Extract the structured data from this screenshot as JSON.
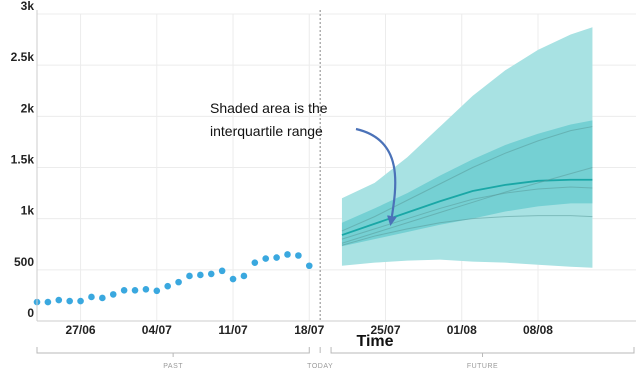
{
  "chart_data": {
    "type": "line",
    "xlabel": "Time",
    "ylabel": "",
    "ylim": [
      0,
      3000
    ],
    "y_ticks": [
      0,
      500,
      1000,
      1500,
      2000,
      2500,
      3000
    ],
    "y_tick_labels": [
      "0",
      "500",
      "1k",
      "1.5k",
      "2k",
      "2.5k",
      "3k"
    ],
    "x_range": [
      -26,
      29
    ],
    "x_ticks": [
      {
        "day": -22,
        "label": "27/06"
      },
      {
        "day": -15,
        "label": "04/07"
      },
      {
        "day": -8,
        "label": "11/07"
      },
      {
        "day": -1,
        "label": "18/07"
      },
      {
        "day": 6,
        "label": "25/07"
      },
      {
        "day": 13,
        "label": "01/08"
      },
      {
        "day": 20,
        "label": "08/08"
      }
    ],
    "today_day": 0,
    "periods": [
      {
        "label": "PAST",
        "from": -26,
        "to": -1
      },
      {
        "label": "TODAY",
        "from": 0,
        "to": 0
      },
      {
        "label": "FUTURE",
        "from": 1,
        "to": 29
      }
    ],
    "series": [
      {
        "type": "scatter",
        "x": [
          -26,
          -25,
          -24,
          -23,
          -22,
          -21,
          -20,
          -19,
          -18,
          -17,
          -16,
          -15,
          -14,
          -13,
          -12,
          -11,
          -10,
          -9,
          -8,
          -7,
          -6,
          -5,
          -4,
          -3,
          -2,
          -1
        ],
        "values": [
          185,
          185,
          205,
          195,
          195,
          235,
          225,
          260,
          300,
          300,
          310,
          295,
          340,
          380,
          440,
          450,
          460,
          490,
          410,
          440,
          570,
          610,
          620,
          650,
          640,
          540
        ]
      },
      {
        "type": "band",
        "x": [
          2,
          5,
          8,
          11,
          14,
          17,
          20,
          23,
          25
        ],
        "upper": [
          1200,
          1350,
          1600,
          1900,
          2200,
          2450,
          2650,
          2800,
          2870
        ],
        "lower": [
          540,
          570,
          590,
          600,
          580,
          570,
          550,
          530,
          520
        ]
      },
      {
        "type": "band",
        "x": [
          2,
          5,
          8,
          11,
          14,
          17,
          20,
          23,
          25
        ],
        "upper": [
          960,
          1100,
          1250,
          1420,
          1580,
          1720,
          1830,
          1920,
          1960
        ],
        "lower": [
          730,
          800,
          870,
          940,
          1000,
          1070,
          1120,
          1150,
          1150
        ]
      },
      {
        "type": "line",
        "x": [
          2,
          5,
          8,
          11,
          14,
          17,
          20,
          23,
          25
        ],
        "values": [
          840,
          950,
          1060,
          1170,
          1270,
          1330,
          1370,
          1380,
          1380
        ]
      },
      {
        "type": "line",
        "x": [
          2,
          5,
          8,
          11,
          14,
          17,
          20,
          23,
          25
        ],
        "values": [
          880,
          1020,
          1180,
          1340,
          1500,
          1640,
          1760,
          1860,
          1900
        ]
      },
      {
        "type": "line",
        "x": [
          2,
          5,
          8,
          11,
          14,
          17,
          20,
          23,
          25
        ],
        "values": [
          800,
          900,
          1000,
          1100,
          1190,
          1250,
          1290,
          1310,
          1300
        ]
      },
      {
        "type": "line",
        "x": [
          2,
          5,
          8,
          11,
          14,
          17,
          20,
          23,
          25
        ],
        "values": [
          760,
          860,
          960,
          1060,
          1160,
          1260,
          1350,
          1440,
          1500
        ]
      },
      {
        "type": "line",
        "x": [
          2,
          5,
          8,
          11,
          14,
          17,
          20,
          23,
          25
        ],
        "values": [
          740,
          830,
          900,
          960,
          1000,
          1020,
          1030,
          1030,
          1020
        ]
      }
    ],
    "annotations": [
      {
        "text": "Shaded area is the interquartile range",
        "lines": [
          "Shaded area is the",
          "interquartile range"
        ]
      }
    ],
    "colors": {
      "dots": "#3aa8df",
      "outer_band": "#a8e2e3",
      "inner_band": "#6ccdd0",
      "median": "#1aa7a6",
      "other_lines": "#5a9a9a",
      "arrow": "#4b72b8",
      "today_line": "#888888"
    }
  }
}
